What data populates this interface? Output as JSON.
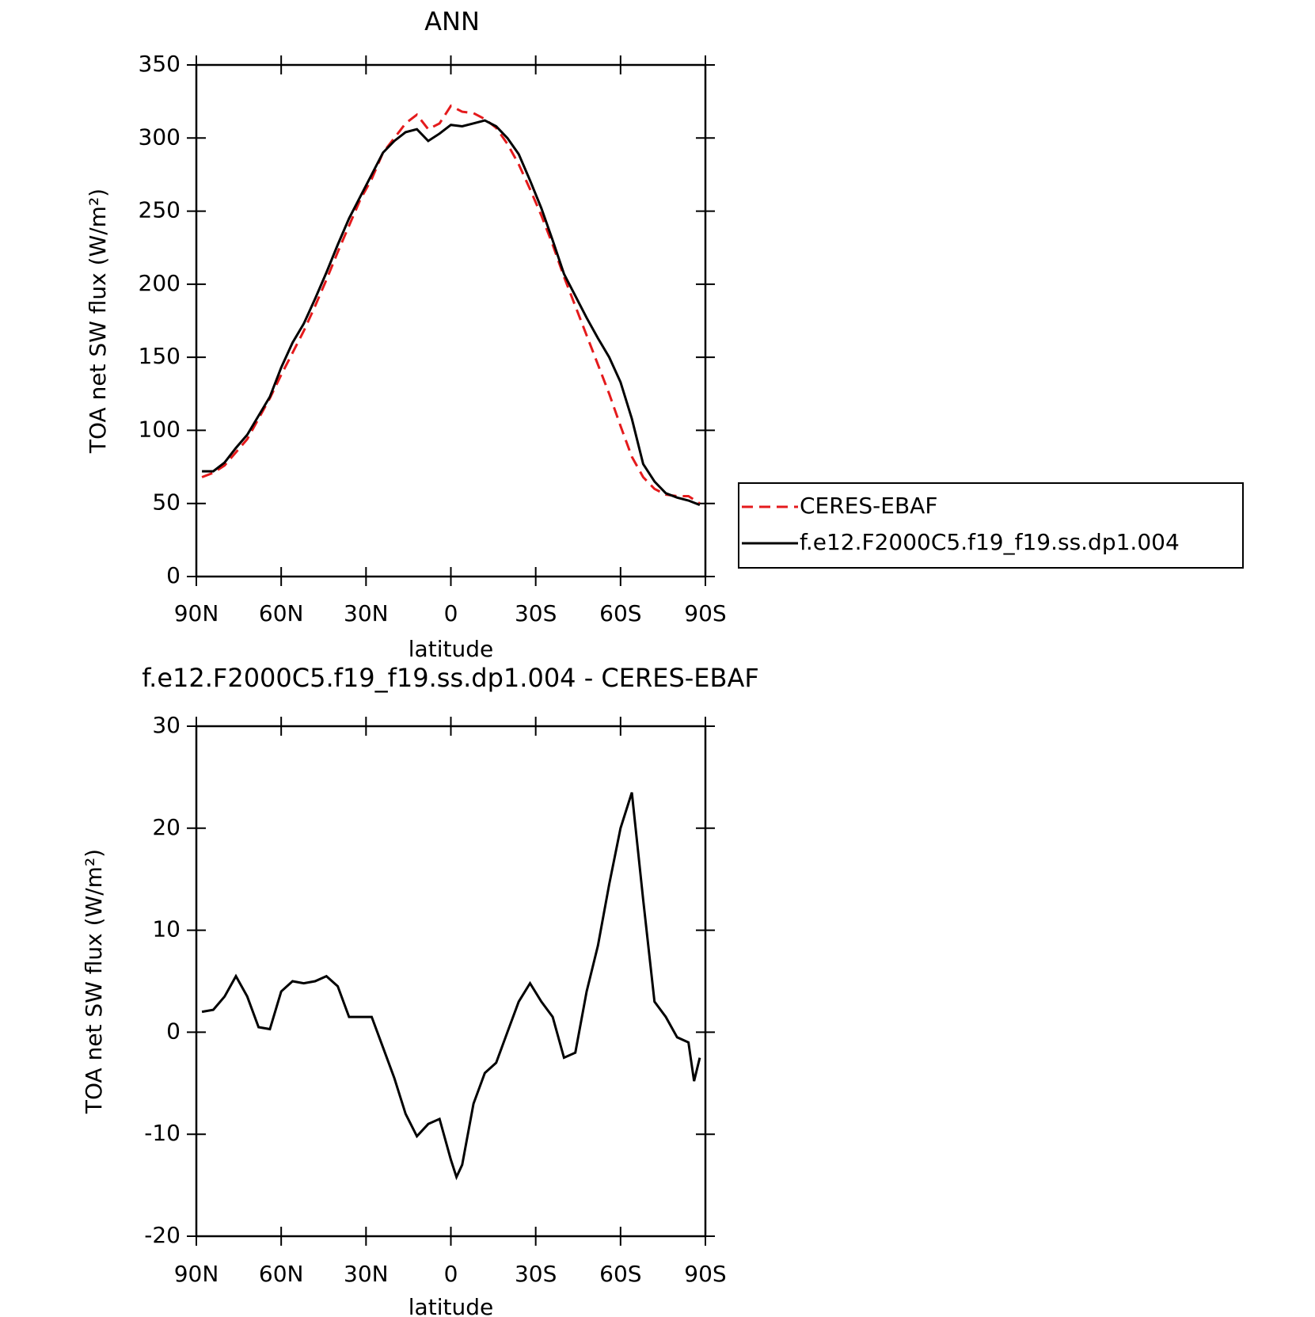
{
  "chart_data": [
    {
      "type": "line",
      "title": "ANN",
      "x_label": "latitude",
      "y_label": "TOA net SW flux (W/m²)",
      "xlim": [
        90,
        -90
      ],
      "xticks": [
        {
          "value": 90,
          "label": "90N"
        },
        {
          "value": 60,
          "label": "60N"
        },
        {
          "value": 30,
          "label": "30N"
        },
        0,
        {
          "value": -30,
          "label": "30S"
        },
        {
          "value": -60,
          "label": "60S"
        },
        {
          "value": -90,
          "label": "90S"
        }
      ],
      "ylim": [
        0,
        350
      ],
      "yticks": [
        0,
        50,
        100,
        150,
        200,
        250,
        300,
        350
      ],
      "legend": "right",
      "x": [
        88,
        84,
        80,
        76,
        72,
        68,
        64,
        60,
        56,
        52,
        48,
        44,
        40,
        36,
        32,
        28,
        24,
        20,
        16,
        12,
        8,
        4,
        0,
        -4,
        -8,
        -12,
        -16,
        -20,
        -24,
        -28,
        -32,
        -36,
        -40,
        -44,
        -48,
        -52,
        -56,
        -60,
        -64,
        -68,
        -72,
        -76,
        -80,
        -84,
        -88
      ],
      "series": [
        {
          "name": "CERES-EBAF",
          "color": "#e41a1c",
          "line_style": "dashed",
          "values": [
            68,
            71,
            76,
            85,
            94,
            108,
            122,
            138,
            153,
            168,
            185,
            203,
            222,
            240,
            258,
            272,
            290,
            300,
            310,
            316,
            306,
            310,
            322,
            318,
            317,
            313,
            307,
            296,
            282,
            265,
            247,
            227,
            205,
            185,
            165,
            145,
            125,
            103,
            82,
            68,
            60,
            56,
            55,
            55,
            50
          ]
        },
        {
          "name": "f.e12.F2000C5.f19_f19.ss.dp1.004",
          "color": "#000000",
          "line_style": "solid",
          "values": [
            72,
            72,
            78,
            88,
            97,
            110,
            123,
            143,
            160,
            173,
            190,
            208,
            227,
            245,
            260,
            275,
            290,
            298,
            304,
            306,
            298,
            303,
            309,
            308,
            310,
            312,
            308,
            300,
            289,
            271,
            252,
            230,
            207,
            192,
            177,
            163,
            150,
            133,
            108,
            77,
            65,
            57,
            54,
            52,
            49
          ]
        }
      ]
    },
    {
      "type": "line",
      "title": "f.e12.F2000C5.f19_f19.ss.dp1.004 - CERES-EBAF",
      "x_label": "latitude",
      "y_label": "TOA net SW flux (W/m²)",
      "xlim": [
        90,
        -90
      ],
      "xticks": [
        {
          "value": 90,
          "label": "90N"
        },
        {
          "value": 60,
          "label": "60N"
        },
        {
          "value": 30,
          "label": "30N"
        },
        0,
        {
          "value": -30,
          "label": "30S"
        },
        {
          "value": -60,
          "label": "60S"
        },
        {
          "value": -90,
          "label": "90S"
        }
      ],
      "ylim": [
        -20,
        30
      ],
      "yticks": [
        -20,
        -10,
        0,
        10,
        20,
        30
      ],
      "x": [
        88,
        84,
        80,
        76,
        72,
        68,
        64,
        60,
        56,
        52,
        48,
        44,
        40,
        36,
        32,
        28,
        24,
        20,
        16,
        12,
        8,
        4,
        0,
        -2,
        -4,
        -8,
        -12,
        -16,
        -20,
        -24,
        -28,
        -32,
        -36,
        -40,
        -44,
        -48,
        -52,
        -56,
        -60,
        -64,
        -68,
        -72,
        -76,
        -80,
        -84,
        -86,
        -88
      ],
      "series": [
        {
          "color": "#000000",
          "line_style": "solid",
          "values": [
            2,
            2.2,
            3.5,
            5.5,
            3.5,
            0.5,
            0.3,
            4,
            5,
            4.8,
            5,
            5.5,
            4.5,
            1.5,
            1.5,
            1.5,
            -1.5,
            -4.5,
            -8,
            -10.2,
            -9,
            -8.5,
            -12.5,
            -14.2,
            -13,
            -7,
            -4,
            -3,
            0,
            3,
            4.8,
            3,
            1.5,
            -2.5,
            -2,
            4,
            8.5,
            14.5,
            20,
            23.5,
            13,
            3,
            1.5,
            -0.5,
            -1,
            -4.8,
            -2.5
          ]
        }
      ]
    }
  ]
}
